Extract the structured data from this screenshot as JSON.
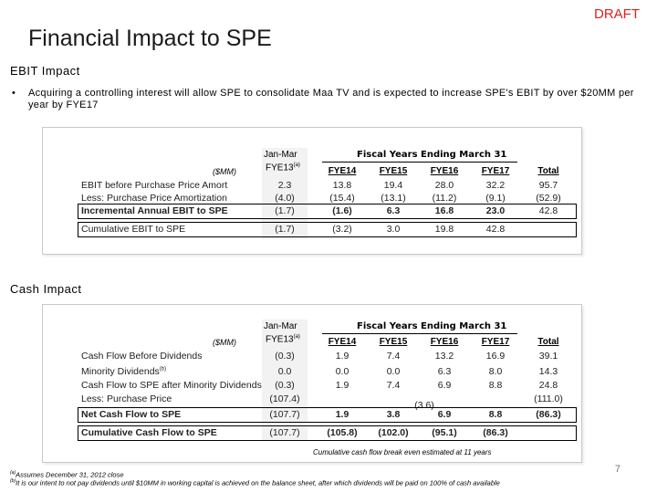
{
  "draft_label": "DRAFT",
  "title": "Financial Impact to SPE",
  "ebit_section": {
    "heading": "EBIT Impact",
    "bullet": "•",
    "bullet_text": "Acquiring a controlling interest will allow SPE to consolidate Maa TV and is expected to increase SPE's EBIT by over $20MM per year by FYE17",
    "units": "($MM)",
    "col_group_top": "Jan-Mar",
    "col_group_sub": "FYE13",
    "col_group_sup": "(a)",
    "fiscal_header": "Fiscal Years Ending March 31",
    "columns": [
      "FYE14",
      "FYE15",
      "FYE16",
      "FYE17"
    ],
    "total_header": "Total",
    "rows": [
      {
        "label": "EBIT before Purchase Price Amort",
        "values": [
          "2.3",
          "13.8",
          "19.4",
          "28.0",
          "32.2",
          "95.7"
        ]
      },
      {
        "label": "Less: Purchase Price Amortization",
        "values": [
          "(4.0)",
          "(15.4)",
          "(13.1)",
          "(11.2)",
          "(9.1)",
          "(52.9)"
        ]
      },
      {
        "label": "Incremental Annual EBIT to SPE",
        "values": [
          "(1.7)",
          "(1.6)",
          "6.3",
          "16.8",
          "23.0",
          "42.8"
        ]
      },
      {
        "label": "Cumulative EBIT to SPE",
        "values": [
          "(1.7)",
          "(3.2)",
          "3.0",
          "19.8",
          "42.8",
          ""
        ]
      }
    ]
  },
  "cash_section": {
    "heading": "Cash Impact",
    "units": "($MM)",
    "col_group_top": "Jan-Mar",
    "col_group_sub": "FYE13",
    "col_group_sup": "(a)",
    "fiscal_header": "Fiscal Years Ending March 31",
    "columns": [
      "FYE14",
      "FYE15",
      "FYE16",
      "FYE17"
    ],
    "total_header": "Total",
    "rows": [
      {
        "label": "Cash Flow Before Dividends",
        "values": [
          "(0.3)",
          "1.9",
          "7.4",
          "13.2",
          "16.9",
          "39.1"
        ]
      },
      {
        "label": "Minority Dividends",
        "label_sup": "(b)",
        "values": [
          "0.0",
          "0.0",
          "0.0",
          "6.3",
          "8.0",
          "14.3"
        ]
      },
      {
        "label": "Cash Flow to SPE after Minority Dividends",
        "values": [
          "(0.3)",
          "1.9",
          "7.4",
          "6.9",
          "8.8",
          "24.8"
        ]
      },
      {
        "label": "Less: Purchase Price",
        "values": [
          "(107.4)",
          "",
          "(3.6)",
          "",
          "",
          "(111.0)"
        ]
      },
      {
        "label": "Net Cash Flow to SPE",
        "values": [
          "(107.7)",
          "1.9",
          "3.8",
          "6.9",
          "8.8",
          "(86.3)"
        ]
      },
      {
        "label": "Cumulative Cash Flow to SPE",
        "values": [
          "(107.7)",
          "(105.8)",
          "(102.0)",
          "(95.1)",
          "(86.3)",
          ""
        ]
      }
    ],
    "caption": "Cumulative cash flow break even estimated at 11 years"
  },
  "footnotes": [
    {
      "marker": "(a)",
      "text": "Assumes December 31, 2012 close"
    },
    {
      "marker": "(b)",
      "text": "It is our intent to not pay dividends until $10MM in working capital is achieved on the balance sheet, after which dividends will be paid on 100% of cash available"
    }
  ],
  "page_number": "7"
}
